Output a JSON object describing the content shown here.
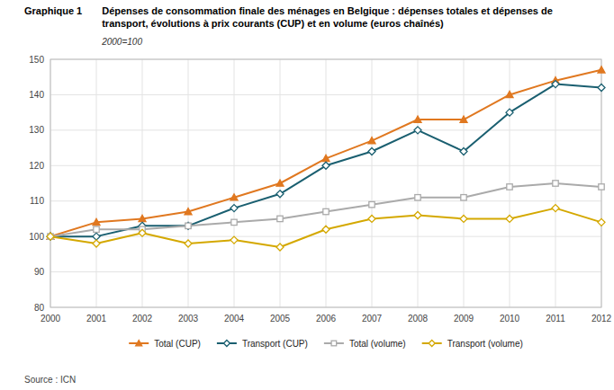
{
  "chart_data": {
    "type": "line",
    "title": "Dépenses de consommation finale des ménages en Belgique : dépenses totales et dépenses de\ntransport, évolutions à prix courants (CUP) et en volume (euros chaînés)",
    "subtitle": "2000=100",
    "annotations": [
      "Graphique 1",
      "Source : ICN"
    ],
    "x": [
      2000,
      2001,
      2002,
      2003,
      2004,
      2005,
      2006,
      2007,
      2008,
      2009,
      2010,
      2011,
      2012
    ],
    "series": [
      {
        "name": "Total (CUP)",
        "color": "#E07820",
        "marker": "triangle",
        "line_style": "solid",
        "values": [
          100,
          104,
          105,
          107,
          111,
          115,
          122,
          127,
          133,
          133,
          140,
          144,
          147
        ]
      },
      {
        "name": "Transport (CUP)",
        "color": "#1A5F70",
        "marker": "diamond",
        "line_style": "solid",
        "values": [
          100,
          100,
          103,
          103,
          108,
          112,
          120,
          124,
          130,
          124,
          135,
          143,
          142
        ]
      },
      {
        "name": "Total (volume)",
        "color": "#AAAAAA",
        "marker": "square",
        "line_style": "solid",
        "values": [
          100,
          102,
          102,
          103,
          104,
          105,
          107,
          109,
          111,
          111,
          114,
          115,
          114
        ]
      },
      {
        "name": "Transport (volume)",
        "color": "#D4A800",
        "marker": "diamond",
        "line_style": "solid",
        "values": [
          100,
          98,
          101,
          98,
          99,
          97,
          102,
          105,
          106,
          105,
          105,
          108,
          104
        ]
      }
    ],
    "xlim": [
      2000,
      2012
    ],
    "xticks": [
      2000,
      2001,
      2002,
      2003,
      2004,
      2005,
      2006,
      2007,
      2008,
      2009,
      2010,
      2011,
      2012
    ],
    "ylim": [
      80,
      150
    ],
    "yticks": [
      80,
      90,
      100,
      110,
      120,
      130,
      140,
      150
    ],
    "grid": true,
    "legend": "bottom"
  }
}
